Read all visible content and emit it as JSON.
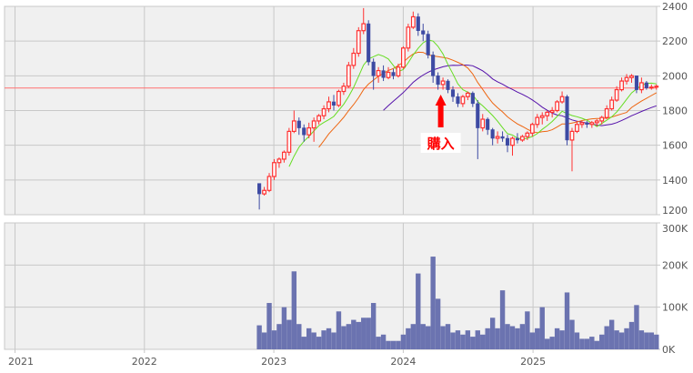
{
  "chart_data": {
    "type": "candlestick",
    "title": "",
    "x_tick_labels": [
      "2021",
      "2022",
      "2023",
      "2024",
      "2025"
    ],
    "price_axis": {
      "ylim": [
        1200,
        2400
      ],
      "tick_labels": [
        "1200",
        "1400",
        "1600",
        "1800",
        "2000",
        "2200",
        "2400"
      ],
      "position": "right"
    },
    "volume_axis": {
      "ylim": [
        0,
        300
      ],
      "unit": "K",
      "tick_labels": [
        "0K",
        "100K",
        "200K",
        "300K"
      ],
      "position": "right"
    },
    "grid": true,
    "reference_line": {
      "price": 1930,
      "color": "#ff7070"
    },
    "annotation": {
      "label": "購入",
      "date": "2024-04-08",
      "color": "#ff0000"
    },
    "colors": {
      "up": "#ff3030",
      "down": "#3d4aa3",
      "volume": "#6b73b0",
      "ma_short": "#66dd22",
      "ma_mid": "#ee6611",
      "ma_long": "#5511aa",
      "panel": "#f0f0f0",
      "grid": "#c8c8c8"
    },
    "columns": [
      "date",
      "open",
      "high",
      "low",
      "close",
      "volume_k"
    ],
    "candles": [
      [
        "2022-11-21",
        1380,
        1380,
        1230,
        1320,
        57
      ],
      [
        "2022-12-05",
        1320,
        1360,
        1310,
        1340,
        40
      ],
      [
        "2022-12-19",
        1340,
        1440,
        1330,
        1420,
        110
      ],
      [
        "2023-01-02",
        1420,
        1520,
        1400,
        1500,
        45
      ],
      [
        "2023-01-16",
        1500,
        1530,
        1470,
        1520,
        60
      ],
      [
        "2023-01-30",
        1520,
        1570,
        1500,
        1560,
        100
      ],
      [
        "2023-02-13",
        1560,
        1700,
        1540,
        1680,
        70
      ],
      [
        "2023-02-27",
        1680,
        1800,
        1670,
        1740,
        185
      ],
      [
        "2023-03-13",
        1740,
        1760,
        1660,
        1700,
        60
      ],
      [
        "2023-03-27",
        1700,
        1720,
        1620,
        1660,
        30
      ],
      [
        "2023-04-10",
        1660,
        1730,
        1640,
        1700,
        50
      ],
      [
        "2023-04-24",
        1700,
        1760,
        1620,
        1740,
        40
      ],
      [
        "2023-05-08",
        1740,
        1780,
        1720,
        1770,
        30
      ],
      [
        "2023-05-22",
        1770,
        1830,
        1750,
        1810,
        45
      ],
      [
        "2023-06-05",
        1810,
        1880,
        1790,
        1850,
        50
      ],
      [
        "2023-06-19",
        1850,
        1890,
        1800,
        1830,
        40
      ],
      [
        "2023-07-03",
        1830,
        1920,
        1820,
        1910,
        90
      ],
      [
        "2023-07-17",
        1910,
        1960,
        1890,
        1940,
        55
      ],
      [
        "2023-07-31",
        1940,
        2080,
        1930,
        2060,
        60
      ],
      [
        "2023-08-14",
        2060,
        2160,
        2040,
        2130,
        70
      ],
      [
        "2023-08-28",
        2130,
        2280,
        2110,
        2260,
        65
      ],
      [
        "2023-09-11",
        2260,
        2390,
        2240,
        2300,
        75
      ],
      [
        "2023-09-25",
        2300,
        2320,
        2060,
        2080,
        75
      ],
      [
        "2023-10-09",
        2080,
        2100,
        1920,
        2000,
        110
      ],
      [
        "2023-10-23",
        2000,
        2050,
        1960,
        2030,
        30
      ],
      [
        "2023-11-06",
        2030,
        2060,
        1970,
        1990,
        35
      ],
      [
        "2023-11-20",
        1990,
        2050,
        1980,
        2020,
        20
      ],
      [
        "2023-12-04",
        2020,
        2040,
        1980,
        2000,
        20
      ],
      [
        "2023-12-18",
        2000,
        2070,
        1990,
        2050,
        20
      ],
      [
        "2024-01-01",
        2050,
        2170,
        2040,
        2160,
        35
      ],
      [
        "2024-01-15",
        2160,
        2300,
        2140,
        2280,
        50
      ],
      [
        "2024-01-29",
        2280,
        2370,
        2270,
        2340,
        60
      ],
      [
        "2024-02-12",
        2340,
        2360,
        2230,
        2260,
        180
      ],
      [
        "2024-02-26",
        2260,
        2300,
        2200,
        2240,
        60
      ],
      [
        "2024-03-11",
        2240,
        2260,
        2100,
        2120,
        55
      ],
      [
        "2024-03-25",
        2120,
        2140,
        1960,
        2000,
        220
      ],
      [
        "2024-04-08",
        2000,
        2020,
        1920,
        1950,
        120
      ],
      [
        "2024-04-22",
        1950,
        1990,
        1920,
        1970,
        55
      ],
      [
        "2024-05-06",
        1970,
        1980,
        1900,
        1920,
        60
      ],
      [
        "2024-05-20",
        1920,
        1940,
        1850,
        1880,
        40
      ],
      [
        "2024-06-03",
        1880,
        1900,
        1820,
        1840,
        45
      ],
      [
        "2024-06-17",
        1840,
        1890,
        1820,
        1880,
        35
      ],
      [
        "2024-07-01",
        1880,
        1910,
        1860,
        1900,
        45
      ],
      [
        "2024-07-15",
        1900,
        1910,
        1820,
        1840,
        30
      ],
      [
        "2024-07-29",
        1840,
        1860,
        1520,
        1700,
        45
      ],
      [
        "2024-08-12",
        1700,
        1780,
        1680,
        1750,
        35
      ],
      [
        "2024-08-26",
        1750,
        1760,
        1660,
        1690,
        50
      ],
      [
        "2024-09-09",
        1690,
        1700,
        1600,
        1640,
        75
      ],
      [
        "2024-09-23",
        1640,
        1680,
        1610,
        1650,
        50
      ],
      [
        "2024-10-07",
        1650,
        1680,
        1620,
        1640,
        140
      ],
      [
        "2024-10-21",
        1640,
        1660,
        1560,
        1600,
        60
      ],
      [
        "2024-11-04",
        1600,
        1650,
        1540,
        1640,
        55
      ],
      [
        "2024-11-18",
        1640,
        1670,
        1610,
        1630,
        50
      ],
      [
        "2024-12-02",
        1630,
        1660,
        1620,
        1650,
        60
      ],
      [
        "2024-12-16",
        1650,
        1680,
        1630,
        1670,
        90
      ],
      [
        "2024-12-30",
        1670,
        1730,
        1650,
        1720,
        40
      ],
      [
        "2025-01-13",
        1720,
        1780,
        1700,
        1760,
        50
      ],
      [
        "2025-01-27",
        1760,
        1790,
        1720,
        1770,
        100
      ],
      [
        "2025-02-10",
        1770,
        1800,
        1740,
        1790,
        25
      ],
      [
        "2025-02-24",
        1790,
        1820,
        1760,
        1800,
        30
      ],
      [
        "2025-03-10",
        1800,
        1860,
        1790,
        1850,
        50
      ],
      [
        "2025-03-24",
        1850,
        1910,
        1840,
        1880,
        45
      ],
      [
        "2025-04-07",
        1880,
        1890,
        1600,
        1630,
        135
      ],
      [
        "2025-04-21",
        1630,
        1700,
        1450,
        1680,
        70
      ],
      [
        "2025-05-05",
        1680,
        1740,
        1670,
        1720,
        40
      ],
      [
        "2025-05-19",
        1720,
        1740,
        1700,
        1730,
        25
      ],
      [
        "2025-06-02",
        1730,
        1740,
        1700,
        1720,
        25
      ],
      [
        "2025-06-16",
        1720,
        1740,
        1700,
        1730,
        30
      ],
      [
        "2025-06-30",
        1730,
        1750,
        1710,
        1740,
        20
      ],
      [
        "2025-07-14",
        1740,
        1770,
        1720,
        1760,
        35
      ],
      [
        "2025-07-28",
        1760,
        1830,
        1750,
        1810,
        55
      ],
      [
        "2025-08-11",
        1810,
        1880,
        1800,
        1860,
        70
      ],
      [
        "2025-08-25",
        1860,
        1940,
        1850,
        1920,
        45
      ],
      [
        "2025-09-08",
        1920,
        1990,
        1910,
        1970,
        40
      ],
      [
        "2025-09-22",
        1970,
        2010,
        1950,
        1990,
        50
      ],
      [
        "2025-10-06",
        1990,
        2010,
        1960,
        2000,
        65
      ],
      [
        "2025-10-20",
        2000,
        2000,
        1900,
        1920,
        105
      ],
      [
        "2025-11-03",
        1920,
        1990,
        1900,
        1960,
        45
      ],
      [
        "2025-11-17",
        1960,
        1970,
        1920,
        1930,
        40
      ],
      [
        "2025-12-01",
        1930,
        1950,
        1920,
        1935,
        40
      ],
      [
        "2025-12-15",
        1935,
        1950,
        1920,
        1940,
        35
      ]
    ]
  }
}
